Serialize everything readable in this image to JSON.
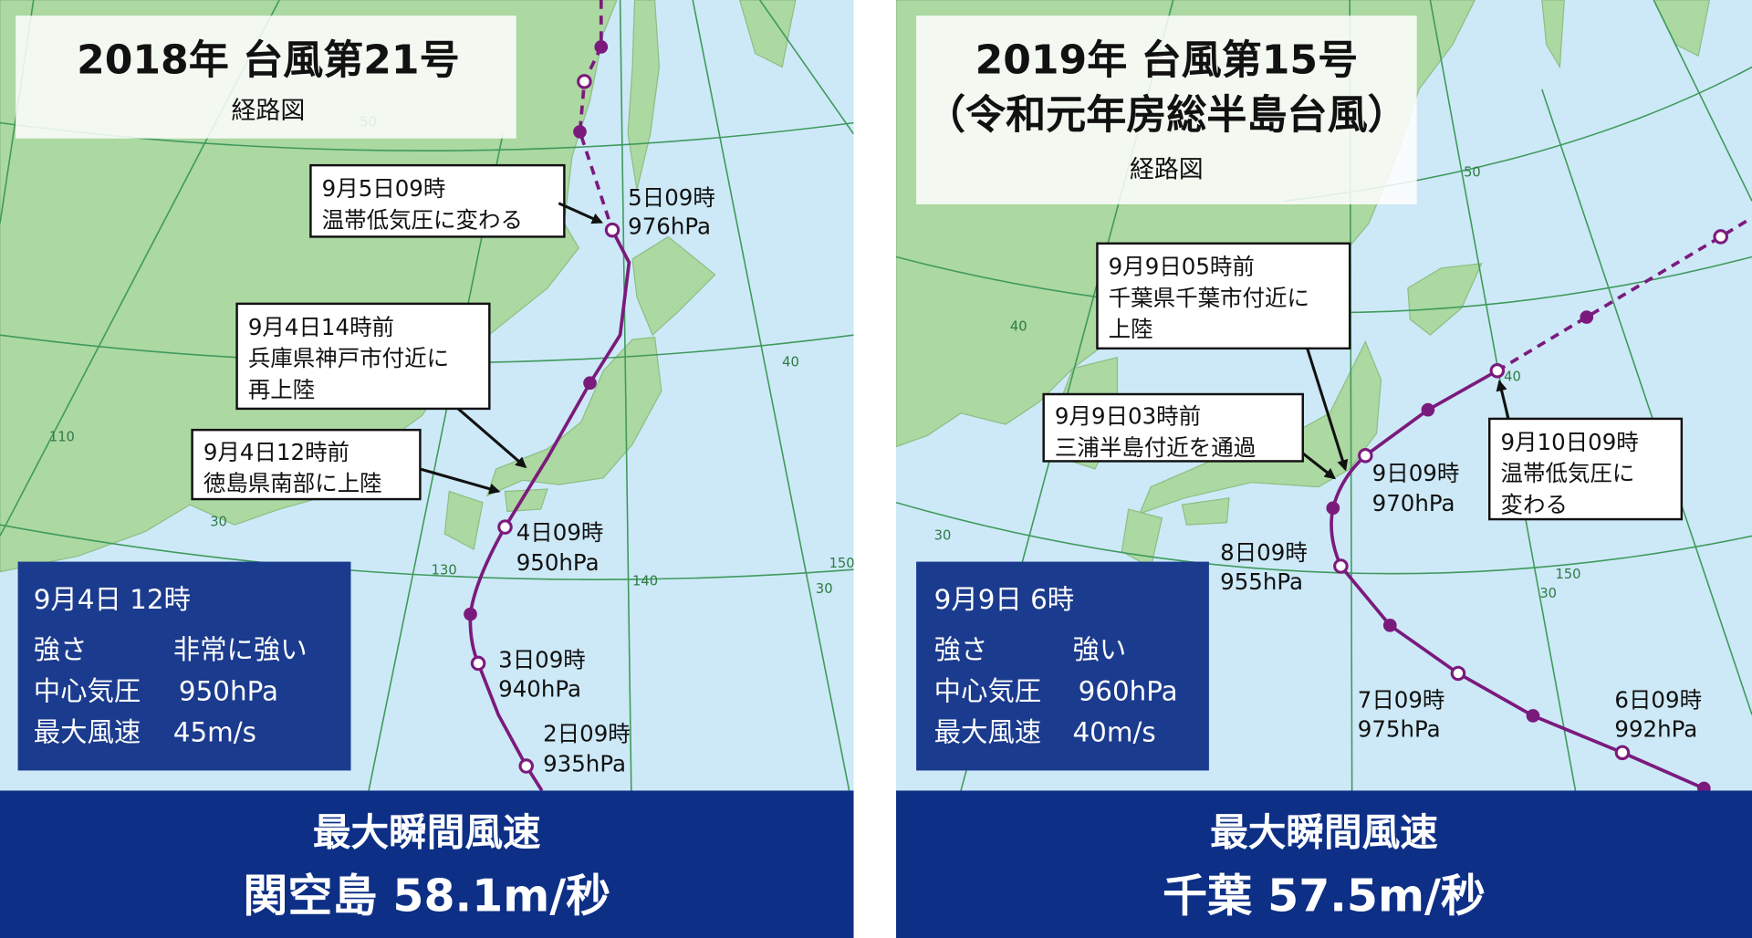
{
  "panels": [
    {
      "title": "2018年 台風第21号",
      "caption": "経路図",
      "annotations": [
        {
          "lines": [
            "9月5日09時",
            "温帯低気圧に変わる"
          ]
        },
        {
          "lines": [
            "9月4日14時前",
            "兵庫県神戸市付近に",
            "再上陸"
          ]
        },
        {
          "lines": [
            "9月4日12時前",
            "徳島県南部に上陸"
          ]
        }
      ],
      "points": [
        {
          "time": "5日09時",
          "pressure": "976hPa"
        },
        {
          "time": "4日09時",
          "pressure": "950hPa"
        },
        {
          "time": "3日09時",
          "pressure": "940hPa"
        },
        {
          "time": "2日09時",
          "pressure": "935hPa"
        }
      ],
      "info": {
        "datetime": "9月4日 12時",
        "rows": [
          {
            "label": "強さ",
            "value": "非常に強い"
          },
          {
            "label": "中心気圧",
            "value": "950hPa"
          },
          {
            "label": "最大風速",
            "value": "45m/s"
          }
        ]
      },
      "banner": [
        "最大瞬間風速",
        "関空島 58.1m/秒"
      ],
      "grid_labels": [
        "50",
        "40",
        "110",
        "30",
        "130",
        "140",
        "150",
        "30"
      ]
    },
    {
      "title": "2019年 台風第15号",
      "subtitle": "（令和元年房総半島台風）",
      "caption": "経路図",
      "annotations": [
        {
          "lines": [
            "9月9日05時前",
            "千葉県千葉市付近に",
            "上陸"
          ]
        },
        {
          "lines": [
            "9月9日03時前",
            "三浦半島付近を通過"
          ]
        },
        {
          "lines": [
            "9月10日09時",
            "温帯低気圧に",
            "変わる"
          ]
        }
      ],
      "points": [
        {
          "time": "9日09時",
          "pressure": "970hPa"
        },
        {
          "time": "8日09時",
          "pressure": "955hPa"
        },
        {
          "time": "7日09時",
          "pressure": "975hPa"
        },
        {
          "time": "6日09時",
          "pressure": "992hPa"
        }
      ],
      "info": {
        "datetime": "9月9日 6時",
        "rows": [
          {
            "label": "強さ",
            "value": "強い"
          },
          {
            "label": "中心気圧",
            "value": "960hPa"
          },
          {
            "label": "最大風速",
            "value": "40m/s"
          }
        ]
      },
      "banner": [
        "最大瞬間風速",
        "千葉 57.5m/秒"
      ],
      "grid_labels": [
        "50",
        "40",
        "40",
        "30",
        "150",
        "30"
      ]
    }
  ]
}
